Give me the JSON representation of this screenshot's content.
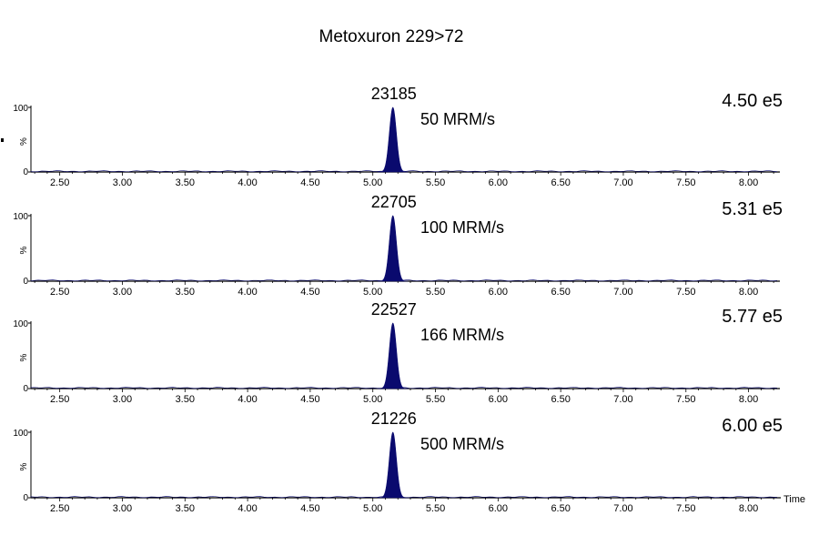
{
  "chart_data": {
    "type": "line",
    "title": "Metoxuron 229>72",
    "xlabel": "Time",
    "ylabel": "%",
    "xlim": [
      2.27,
      8.25
    ],
    "ylim": [
      0,
      100
    ],
    "x_ticks": [
      "2.50",
      "3.00",
      "3.50",
      "4.00",
      "4.50",
      "5.00",
      "5.50",
      "6.00",
      "6.50",
      "7.00",
      "7.50",
      "8.00"
    ],
    "y_ticks": [
      "100",
      "0"
    ],
    "peak_rt": 5.16,
    "panels": [
      {
        "peak_label": "23185",
        "rate_label": "50 MRM/s",
        "intensity": "4.50 e5",
        "peak_rt": 5.16,
        "peak_height": 100
      },
      {
        "peak_label": "22705",
        "rate_label": "100 MRM/s",
        "intensity": "5.31 e5",
        "peak_rt": 5.16,
        "peak_height": 100
      },
      {
        "peak_label": "22527",
        "rate_label": "166 MRM/s",
        "intensity": "5.77 e5",
        "peak_rt": 5.16,
        "peak_height": 100
      },
      {
        "peak_label": "21226",
        "rate_label": "500 MRM/s",
        "intensity": "6.00 e5",
        "peak_rt": 5.16,
        "peak_height": 100
      }
    ],
    "colors": {
      "peak": "#0a0a6e",
      "axis": "#000000"
    }
  }
}
